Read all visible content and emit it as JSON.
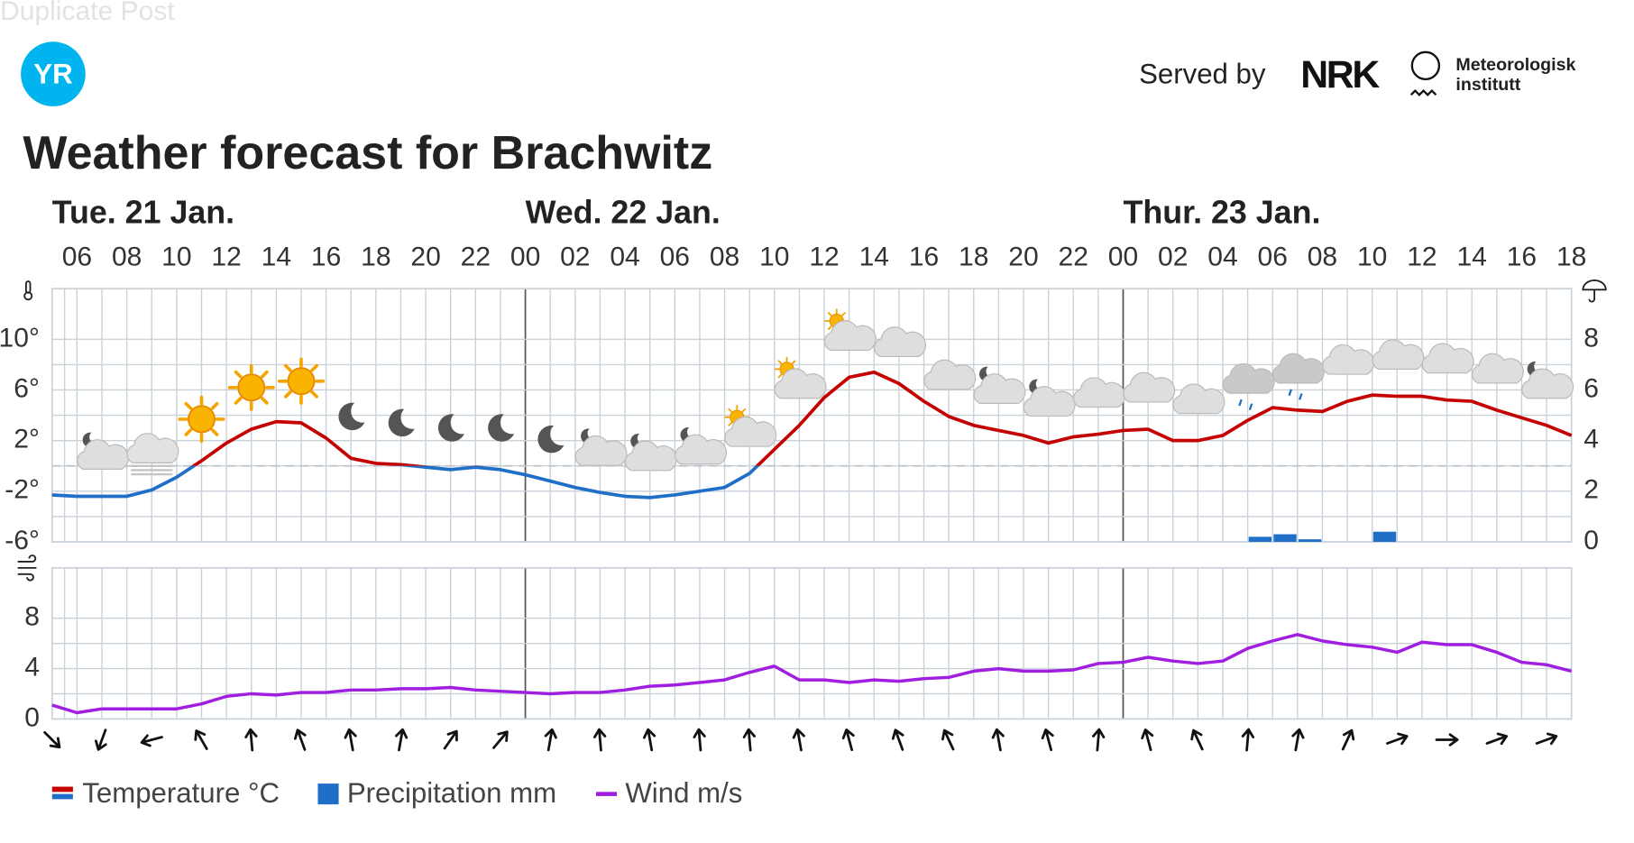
{
  "overlay": "Duplicate Post",
  "header": {
    "logo": "YR",
    "served_by": "Served by",
    "nrk": "NRK",
    "met": [
      "Meteorologisk",
      "institutt"
    ]
  },
  "title": "Weather forecast for Brachwitz",
  "chart_data": [
    {
      "type": "line",
      "day_labels": [
        "Tue. 21 Jan.",
        "Wed. 22 Jan.",
        "Thur. 23 Jan."
      ],
      "xlim": [
        5,
        66
      ],
      "xticks": [
        {
          "value": 6,
          "label": "06"
        },
        {
          "value": 8,
          "label": "08"
        },
        10,
        12,
        14,
        16,
        18,
        20,
        22,
        {
          "value": 24,
          "label": "00"
        },
        {
          "value": 26,
          "label": "02"
        },
        {
          "value": 28,
          "label": "04"
        },
        {
          "value": 30,
          "label": "06"
        },
        {
          "value": 32,
          "label": "08"
        },
        {
          "value": 34,
          "label": "10"
        },
        {
          "value": 36,
          "label": "12"
        },
        {
          "value": 38,
          "label": "14"
        },
        {
          "value": 40,
          "label": "16"
        },
        {
          "value": 42,
          "label": "18"
        },
        {
          "value": 44,
          "label": "20"
        },
        {
          "value": 46,
          "label": "22"
        },
        {
          "value": 48,
          "label": "00"
        },
        {
          "value": 50,
          "label": "02"
        },
        {
          "value": 52,
          "label": "04"
        },
        {
          "value": 54,
          "label": "06"
        },
        {
          "value": 56,
          "label": "08"
        },
        {
          "value": 58,
          "label": "10"
        },
        {
          "value": 60,
          "label": "12"
        },
        {
          "value": 62,
          "label": "14"
        },
        {
          "value": 64,
          "label": "16"
        },
        {
          "value": 66,
          "label": "18"
        }
      ],
      "ylim": [
        -6,
        14
      ],
      "yticks": [
        {
          "value": -6,
          "label": "-6°"
        },
        {
          "value": -2,
          "label": "-2°"
        },
        {
          "value": 2,
          "label": "2°"
        },
        {
          "value": 6,
          "label": "6°"
        },
        {
          "value": 10,
          "label": "10°"
        }
      ],
      "y2lim": [
        0,
        10
      ],
      "y2ticks": [
        0,
        2,
        4,
        6,
        8
      ],
      "grid": true,
      "series": [
        {
          "name": "Temperature °C",
          "color": "#c40000",
          "color_below_zero": "#1f6fc8",
          "x": [
            5,
            6,
            7,
            8,
            9,
            10,
            11,
            12,
            13,
            14,
            15,
            16,
            17,
            18,
            19,
            20,
            21,
            22,
            23,
            24,
            25,
            26,
            27,
            28,
            29,
            30,
            31,
            32,
            33,
            34,
            35,
            36,
            37,
            38,
            39,
            40,
            41,
            42,
            43,
            44,
            45,
            46,
            47,
            48,
            49,
            50,
            51,
            52,
            53,
            54,
            55,
            56,
            57,
            58,
            59,
            60,
            61,
            62,
            63,
            64,
            65,
            66
          ],
          "values": [
            -2.3,
            -2.4,
            -2.4,
            -2.4,
            -1.9,
            -0.9,
            0.4,
            1.8,
            2.9,
            3.5,
            3.4,
            2.2,
            0.6,
            0.2,
            0.1,
            -0.1,
            -0.3,
            -0.1,
            -0.3,
            -0.7,
            -1.2,
            -1.7,
            -2.1,
            -2.4,
            -2.5,
            -2.3,
            -2.0,
            -1.7,
            -0.6,
            1.3,
            3.2,
            5.4,
            7.0,
            7.4,
            6.5,
            5.1,
            3.9,
            3.2,
            2.8,
            2.4,
            1.8,
            2.3,
            2.5,
            2.8,
            2.9,
            2.0,
            2.0,
            2.4,
            3.6,
            4.6,
            4.4,
            4.3,
            5.1,
            5.6,
            5.5,
            5.5,
            5.2,
            5.1,
            4.4,
            3.8,
            3.2,
            2.4
          ]
        },
        {
          "name": "Precipitation mm",
          "type": "bar",
          "axis": "y2",
          "color": "#1f6fc8",
          "x": [
            53.5,
            54.5,
            55.5,
            58.5
          ],
          "values": [
            0.2,
            0.3,
            0.1,
            0.4
          ]
        }
      ]
    },
    {
      "type": "line",
      "xlim": [
        5,
        66
      ],
      "ylim": [
        0,
        12
      ],
      "yticks": [
        0,
        4,
        8
      ],
      "grid": true,
      "series": [
        {
          "name": "Wind m/s",
          "color": "#a01ee0",
          "x": [
            5,
            6,
            7,
            8,
            9,
            10,
            11,
            12,
            13,
            14,
            15,
            16,
            17,
            18,
            19,
            20,
            21,
            22,
            23,
            24,
            25,
            26,
            27,
            28,
            29,
            30,
            31,
            32,
            33,
            34,
            35,
            36,
            37,
            38,
            39,
            40,
            41,
            42,
            43,
            44,
            45,
            46,
            47,
            48,
            49,
            50,
            51,
            52,
            53,
            54,
            55,
            56,
            57,
            58,
            59,
            60,
            61,
            62,
            63,
            64,
            65,
            66
          ],
          "values": [
            1.1,
            0.5,
            0.8,
            0.8,
            0.8,
            0.8,
            1.2,
            1.8,
            2.0,
            1.9,
            2.1,
            2.1,
            2.3,
            2.3,
            2.4,
            2.4,
            2.5,
            2.3,
            2.2,
            2.1,
            2.0,
            2.1,
            2.1,
            2.3,
            2.6,
            2.7,
            2.9,
            3.1,
            3.7,
            4.2,
            3.1,
            3.1,
            2.9,
            3.1,
            3.0,
            3.2,
            3.3,
            3.8,
            4.0,
            3.8,
            3.8,
            3.9,
            4.4,
            4.5,
            4.9,
            4.6,
            4.4,
            4.6,
            5.6,
            6.2,
            6.7,
            6.2,
            5.9,
            5.7,
            5.3,
            6.1,
            5.9,
            5.9,
            5.3,
            4.5,
            4.3,
            3.8
          ],
          "directions_x": [
            5,
            7,
            9,
            11,
            13,
            15,
            17,
            19,
            21,
            23,
            25,
            27,
            29,
            31,
            33,
            35,
            37,
            39,
            41,
            43,
            45,
            47,
            49,
            51,
            53,
            55,
            57,
            59,
            61,
            63,
            65
          ],
          "directions": [
            135,
            200,
            255,
            330,
            355,
            340,
            350,
            10,
            35,
            40,
            10,
            355,
            350,
            355,
            355,
            350,
            345,
            340,
            335,
            350,
            345,
            5,
            345,
            335,
            5,
            10,
            25,
            70,
            90,
            70,
            70
          ]
        }
      ]
    }
  ]
}
